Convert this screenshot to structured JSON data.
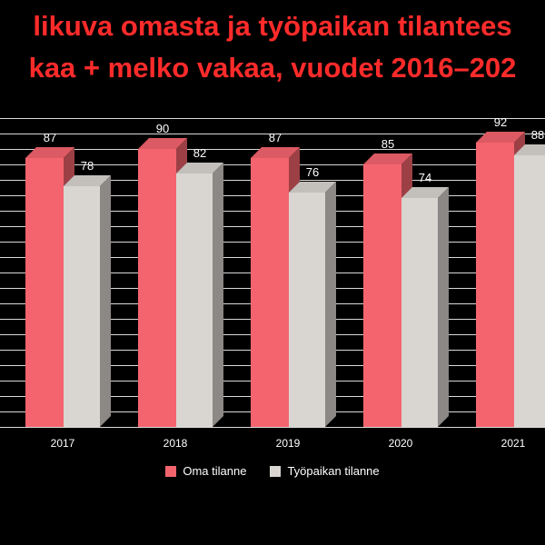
{
  "title": {
    "line1": "likuva omasta  ja työpaikan tilantees",
    "line2": "kaa + melko vakaa, vuodet 2016–202",
    "color": "#FF2B2B"
  },
  "chart_data": {
    "type": "bar",
    "style": "3d-clustered",
    "background": "#000000",
    "text_color": "#FFFFFF",
    "categories": [
      "2017",
      "2018",
      "2019",
      "2020",
      "2021"
    ],
    "series": [
      {
        "name": "Oma tilanne",
        "color": "#F4646E",
        "values": [
          87,
          90,
          87,
          85,
          92
        ]
      },
      {
        "name": "Työpaikan tilanne",
        "color": "#D9D5D1",
        "values": [
          78,
          82,
          76,
          74,
          88
        ]
      }
    ],
    "ylim": [
      0,
      100
    ],
    "gridline_step": 5,
    "grid": true,
    "data_labels": true,
    "legend_position": "bottom"
  }
}
